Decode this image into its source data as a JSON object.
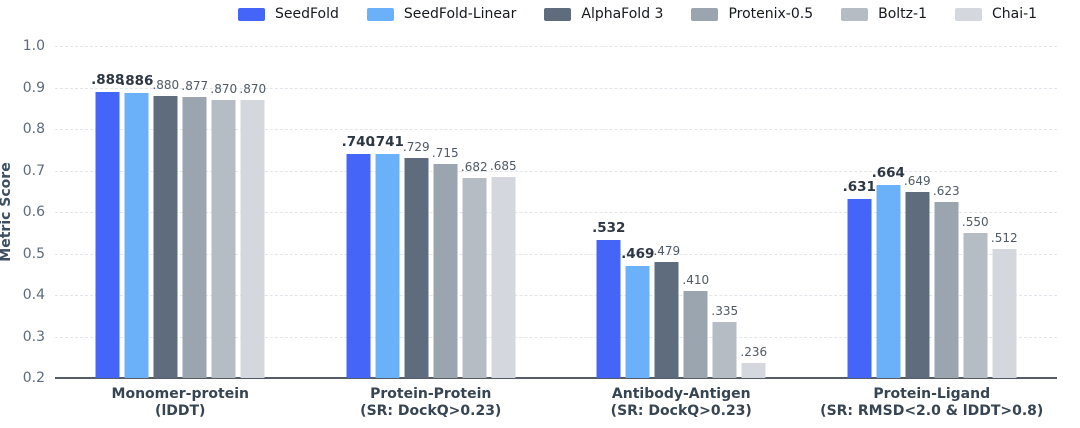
{
  "figure": {
    "background": "#ffffff",
    "axis_color": "#555c66",
    "grid_color": "#e2e5e9"
  },
  "legend": {
    "position": "top",
    "items": [
      {
        "label": "SeedFold",
        "color": "#4565F9"
      },
      {
        "label": "SeedFold-Linear",
        "color": "#6BB1F9"
      },
      {
        "label": "AlphaFold 3",
        "color": "#5E6C7D"
      },
      {
        "label": "Protenix-0.5",
        "color": "#9AA5B0"
      },
      {
        "label": "Boltz-1",
        "color": "#B5BCC4"
      },
      {
        "label": "Chai-1",
        "color": "#D4D8DE"
      }
    ]
  },
  "chart_data": {
    "type": "bar",
    "title": "",
    "xlabel": "",
    "ylabel": "Metric Score",
    "ylim": [
      0.2,
      1.0
    ],
    "yticks": [
      1.0,
      0.9,
      0.8,
      0.7,
      0.6,
      0.5,
      0.4,
      0.3,
      0.2
    ],
    "grid": "horizontal-dashed",
    "legend_position": "top",
    "categories": [
      {
        "label": "Monomer-protein",
        "sublabel": "(lDDT)"
      },
      {
        "label": "Protein-Protein",
        "sublabel": "(SR: DockQ>0.23)"
      },
      {
        "label": "Antibody-Antigen",
        "sublabel": "(SR: DockQ>0.23)"
      },
      {
        "label": "Protein-Ligand",
        "sublabel": "(SR: RMSD<2.0 & lDDT>0.8)"
      }
    ],
    "series": [
      {
        "name": "SeedFold",
        "color": "#4565F9",
        "bold_labels": true,
        "values": [
          0.888,
          0.74,
          0.532,
          0.631
        ],
        "labels": [
          ".888",
          ".740",
          ".532",
          ".631"
        ]
      },
      {
        "name": "SeedFold-Linear",
        "color": "#6BB1F9",
        "bold_labels": true,
        "values": [
          0.886,
          0.741,
          0.469,
          0.664
        ],
        "labels": [
          ".886",
          ".741",
          ".469",
          ".664"
        ]
      },
      {
        "name": "AlphaFold 3",
        "color": "#5E6C7D",
        "bold_labels": false,
        "values": [
          0.88,
          0.729,
          0.479,
          0.649
        ],
        "labels": [
          ".880",
          ".729",
          ".479",
          ".649"
        ]
      },
      {
        "name": "Protenix-0.5",
        "color": "#9AA5B0",
        "bold_labels": false,
        "values": [
          0.877,
          0.715,
          0.41,
          0.623
        ],
        "labels": [
          ".877",
          ".715",
          ".410",
          ".623"
        ]
      },
      {
        "name": "Boltz-1",
        "color": "#B5BCC4",
        "bold_labels": false,
        "values": [
          0.87,
          0.682,
          0.335,
          0.55
        ],
        "labels": [
          ".870",
          ".682",
          ".335",
          ".550"
        ]
      },
      {
        "name": "Chai-1",
        "color": "#D4D8DE",
        "bold_labels": false,
        "values": [
          0.87,
          0.685,
          0.236,
          0.512
        ],
        "labels": [
          ".870",
          ".685",
          ".236",
          ".512"
        ]
      }
    ]
  }
}
